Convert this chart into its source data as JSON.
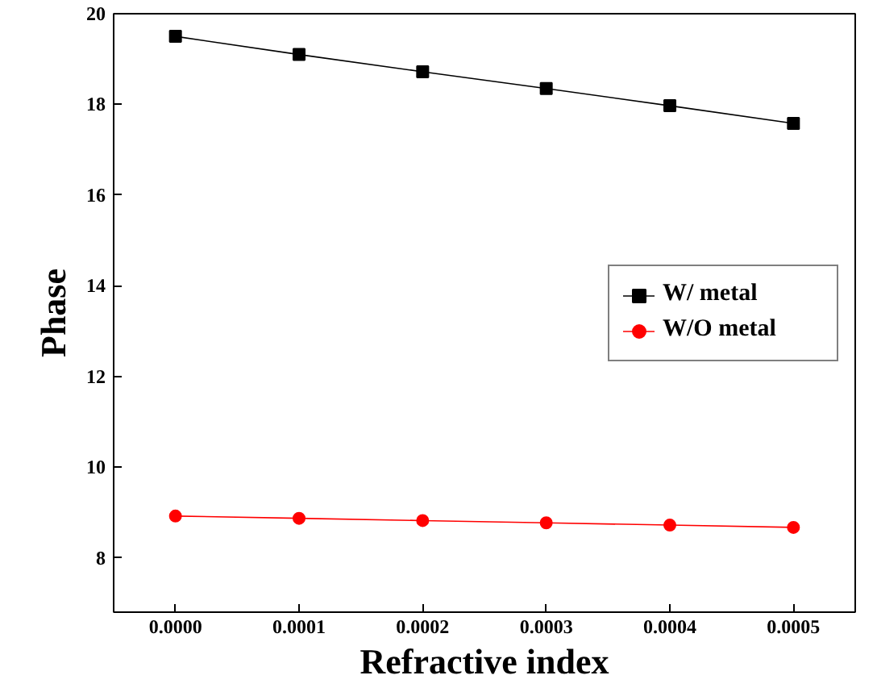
{
  "chart_data": {
    "type": "line",
    "xlabel": "Refractive index",
    "ylabel": "Phase",
    "x": [
      0.0,
      0.0001,
      0.0002,
      0.0003,
      0.0004,
      0.0005
    ],
    "xlim": [
      -5e-05,
      0.00055
    ],
    "ylim": [
      6.8,
      20
    ],
    "xticks": [
      {
        "value": 0.0,
        "label": "0.0000"
      },
      {
        "value": 0.0001,
        "label": "0.0001"
      },
      {
        "value": 0.0002,
        "label": "0.0002"
      },
      {
        "value": 0.0003,
        "label": "0.0003"
      },
      {
        "value": 0.0004,
        "label": "0.0004"
      },
      {
        "value": 0.0005,
        "label": "0.0005"
      }
    ],
    "yticks": [
      8,
      10,
      12,
      14,
      16,
      18,
      20
    ],
    "series": [
      {
        "name": "W/ metal",
        "color": "#000000",
        "marker": "square",
        "values": [
          19.5,
          19.1,
          18.72,
          18.35,
          17.97,
          17.58
        ]
      },
      {
        "name": "W/O metal",
        "color": "#ff0000",
        "marker": "circle",
        "values": [
          8.92,
          8.87,
          8.82,
          8.77,
          8.72,
          8.67
        ]
      }
    ],
    "legend": "right",
    "grid": false,
    "line_style": "solid"
  }
}
